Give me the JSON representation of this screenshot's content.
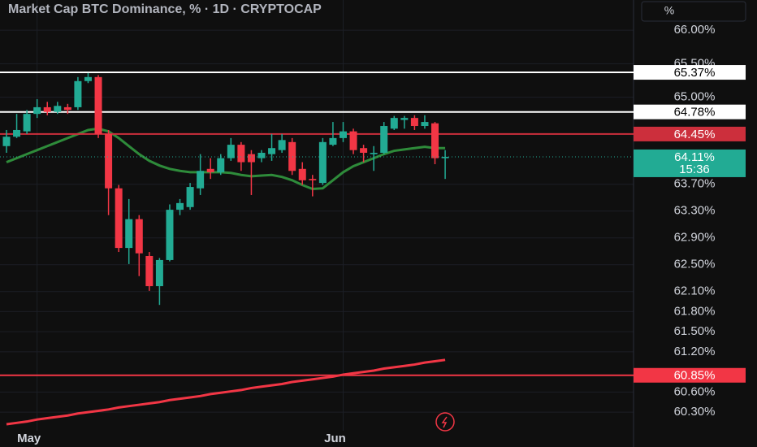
{
  "chart_data": {
    "type": "candlestick",
    "title": "Market Cap BTC Dominance, % · 1D · CRYPTOCAP",
    "button": "%",
    "categories": [
      null,
      null,
      null,
      "May",
      null,
      null,
      null,
      null,
      null,
      null,
      null,
      null,
      null,
      null,
      null,
      null,
      null,
      null,
      null,
      null,
      null,
      null,
      null,
      null,
      null,
      null,
      null,
      null,
      null,
      null,
      null,
      null,
      null,
      "Jun",
      null,
      null,
      null,
      null,
      null,
      null,
      null,
      null,
      null,
      null
    ],
    "open": [
      64.27,
      64.41,
      64.49,
      64.75,
      64.85,
      64.78,
      64.85,
      64.85,
      65.24,
      65.3,
      64.45,
      63.64,
      62.75,
      63.18,
      62.63,
      62.18,
      62.57,
      63.32,
      63.36,
      63.64,
      63.93,
      63.88,
      64.09,
      64.29,
      64.15,
      64.09,
      64.15,
      64.21,
      64.33,
      63.93,
      63.78,
      63.72,
      64.29,
      64.39,
      64.49,
      64.24,
      64.15,
      64.17,
      64.53,
      64.66,
      64.69,
      64.57,
      64.61,
      64.09
    ],
    "high": [
      64.51,
      64.75,
      64.81,
      64.97,
      64.93,
      64.93,
      64.9,
      65.3,
      65.36,
      65.33,
      64.51,
      63.69,
      63.48,
      63.24,
      62.69,
      62.6,
      63.4,
      63.48,
      63.72,
      64.15,
      64.09,
      64.15,
      64.39,
      64.33,
      64.21,
      64.21,
      64.45,
      64.45,
      64.39,
      64.03,
      63.84,
      64.39,
      64.63,
      64.63,
      64.53,
      64.29,
      64.27,
      64.63,
      64.72,
      64.72,
      64.73,
      64.73,
      64.63,
      64.21
    ],
    "low": [
      64.17,
      64.39,
      64.45,
      64.69,
      64.73,
      64.75,
      64.75,
      64.81,
      65.21,
      64.39,
      63.24,
      62.69,
      62.51,
      62.33,
      62.11,
      61.9,
      62.55,
      63.24,
      63.32,
      63.54,
      63.78,
      63.84,
      64.05,
      63.9,
      63.54,
      64.03,
      64.05,
      64.17,
      63.84,
      63.69,
      63.52,
      63.69,
      64.27,
      64.33,
      64.15,
      64.03,
      63.9,
      64.15,
      64.51,
      64.53,
      64.51,
      64.53,
      64.0,
      63.78
    ],
    "close": [
      64.41,
      64.51,
      64.75,
      64.85,
      64.78,
      64.87,
      64.81,
      65.24,
      65.3,
      64.45,
      63.64,
      62.75,
      63.18,
      62.67,
      62.18,
      62.57,
      63.32,
      63.42,
      63.66,
      63.9,
      63.88,
      64.09,
      64.29,
      64.03,
      64.03,
      64.17,
      64.24,
      64.36,
      63.9,
      63.76,
      63.76,
      64.33,
      64.39,
      64.49,
      64.21,
      64.17,
      64.17,
      64.57,
      64.69,
      64.69,
      64.57,
      64.63,
      64.09,
      64.11
    ],
    "up_color": "#22ab94",
    "down_color": "#f23645",
    "overlays": [
      {
        "color": "#2e8b3a",
        "values": [
          64.03,
          64.09,
          64.15,
          64.21,
          64.27,
          64.33,
          64.39,
          64.45,
          64.51,
          64.53,
          64.49,
          64.39,
          64.27,
          64.15,
          64.05,
          63.98,
          63.93,
          63.9,
          63.88,
          63.88,
          63.88,
          63.88,
          63.87,
          63.84,
          63.82,
          63.83,
          63.84,
          63.81,
          63.76,
          63.69,
          63.63,
          63.64,
          63.76,
          63.88,
          63.97,
          64.03,
          64.09,
          64.15,
          64.2,
          64.22,
          64.24,
          64.26,
          64.24,
          64.24
        ]
      },
      {
        "color": "#f23645",
        "values": [
          60.12,
          60.14,
          60.16,
          60.19,
          60.21,
          60.23,
          60.25,
          60.28,
          60.3,
          60.32,
          60.34,
          60.37,
          60.39,
          60.41,
          60.43,
          60.45,
          60.48,
          60.5,
          60.52,
          60.54,
          60.57,
          60.59,
          60.61,
          60.63,
          60.66,
          60.68,
          60.7,
          60.72,
          60.75,
          60.77,
          60.79,
          60.81,
          60.83,
          60.86,
          60.88,
          60.9,
          60.92,
          60.95,
          60.97,
          60.99,
          61.01,
          61.04,
          61.06,
          61.08
        ]
      }
    ],
    "levels": [
      {
        "value": 65.37,
        "label": "65.37%",
        "color": "#ffffff",
        "text_color": "#000000"
      },
      {
        "value": 64.78,
        "label": "64.78%",
        "color": "#ffffff",
        "text_color": "#000000"
      },
      {
        "value": 64.45,
        "label": "64.45%",
        "color": "#cc2f3c",
        "text_color": "#ffffff"
      },
      {
        "value": 60.85,
        "label": "60.85%",
        "color": "#f23645",
        "text_color": "#ffffff"
      }
    ],
    "current": {
      "value": 64.11,
      "label": "64.11%",
      "time": "15:36",
      "color": "#22ab94"
    },
    "ylim": [
      59.78,
      66.45
    ],
    "yticks": [
      {
        "value": 66,
        "label": "66.00%"
      },
      {
        "value": 65.5,
        "label": "65.50%"
      },
      {
        "value": 65,
        "label": "65.00%"
      },
      {
        "value": 63.7,
        "label": "63.70%"
      },
      {
        "value": 63.3,
        "label": "63.30%"
      },
      {
        "value": 62.9,
        "label": "62.90%"
      },
      {
        "value": 62.5,
        "label": "62.50%"
      },
      {
        "value": 62.1,
        "label": "62.10%"
      },
      {
        "value": 61.8,
        "label": "61.80%"
      },
      {
        "value": 61.5,
        "label": "61.50%"
      },
      {
        "value": 61.2,
        "label": "61.20%"
      },
      {
        "value": 60.6,
        "label": "60.60%"
      },
      {
        "value": 60.3,
        "label": "60.30%"
      }
    ],
    "grid": true
  }
}
